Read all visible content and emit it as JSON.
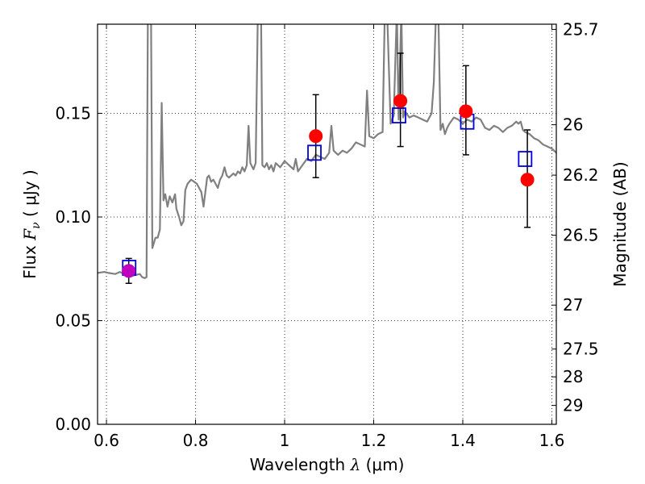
{
  "chart_data": {
    "type": "scatter",
    "title": "",
    "xlabel": {
      "prefix": "Wavelength  ",
      "symbol": "λ",
      "unit": " (μm)"
    },
    "ylabel": {
      "prefix": "Flux  ",
      "symbol": "F",
      "subscript": "ν",
      "unit": "  ( μJy )"
    },
    "y2label": "Magnitude (AB)",
    "xlim": [
      0.58,
      1.61
    ],
    "ylim": [
      0.0,
      0.193
    ],
    "grid": true,
    "x_ticks": [
      {
        "value": 0.6,
        "label": "0.6"
      },
      {
        "value": 0.8,
        "label": "0.8"
      },
      {
        "value": 1.0,
        "label": "1"
      },
      {
        "value": 1.2,
        "label": "1.2"
      },
      {
        "value": 1.4,
        "label": "1.4"
      },
      {
        "value": 1.6,
        "label": "1.6"
      }
    ],
    "y_ticks": [
      {
        "value": 0.0,
        "label": "0.00"
      },
      {
        "value": 0.05,
        "label": "0.05"
      },
      {
        "value": 0.1,
        "label": "0.10"
      },
      {
        "value": 0.15,
        "label": "0.15"
      }
    ],
    "y2_ticks": [
      {
        "flux": 0.1905,
        "label": "25.7"
      },
      {
        "flux": 0.1445,
        "label": "26"
      },
      {
        "flux": 0.1202,
        "label": "26.2"
      },
      {
        "flux": 0.0912,
        "label": "26.5"
      },
      {
        "flux": 0.0575,
        "label": "27"
      },
      {
        "flux": 0.0363,
        "label": "27.5"
      },
      {
        "flux": 0.0229,
        "label": "28"
      },
      {
        "flux": 0.0091,
        "label": "29"
      }
    ],
    "series": [
      {
        "kind": "line",
        "color": "#808080",
        "points": [
          [
            0.58,
            0.073
          ],
          [
            0.595,
            0.0735
          ],
          [
            0.605,
            0.073
          ],
          [
            0.62,
            0.0725
          ],
          [
            0.63,
            0.0735
          ],
          [
            0.645,
            0.072
          ],
          [
            0.655,
            0.0715
          ],
          [
            0.665,
            0.072
          ],
          [
            0.675,
            0.0725
          ],
          [
            0.68,
            0.071
          ],
          [
            0.686,
            0.0705
          ],
          [
            0.69,
            0.071
          ],
          [
            0.693,
            0.2
          ],
          [
            0.7,
            0.2
          ],
          [
            0.703,
            0.085
          ],
          [
            0.71,
            0.09
          ],
          [
            0.715,
            0.09
          ],
          [
            0.72,
            0.094
          ],
          [
            0.724,
            0.155
          ],
          [
            0.728,
            0.108
          ],
          [
            0.732,
            0.111
          ],
          [
            0.737,
            0.105
          ],
          [
            0.742,
            0.11
          ],
          [
            0.748,
            0.107
          ],
          [
            0.754,
            0.111
          ],
          [
            0.757,
            0.104
          ],
          [
            0.763,
            0.1
          ],
          [
            0.768,
            0.096
          ],
          [
            0.773,
            0.098
          ],
          [
            0.777,
            0.113
          ],
          [
            0.782,
            0.116
          ],
          [
            0.79,
            0.118
          ],
          [
            0.797,
            0.117
          ],
          [
            0.803,
            0.116
          ],
          [
            0.808,
            0.114
          ],
          [
            0.813,
            0.112
          ],
          [
            0.818,
            0.105
          ],
          [
            0.822,
            0.112
          ],
          [
            0.826,
            0.119
          ],
          [
            0.83,
            0.12
          ],
          [
            0.835,
            0.117
          ],
          [
            0.84,
            0.118
          ],
          [
            0.845,
            0.116
          ],
          [
            0.85,
            0.114
          ],
          [
            0.855,
            0.118
          ],
          [
            0.86,
            0.12
          ],
          [
            0.865,
            0.124
          ],
          [
            0.87,
            0.12
          ],
          [
            0.875,
            0.119
          ],
          [
            0.88,
            0.12
          ],
          [
            0.885,
            0.121
          ],
          [
            0.89,
            0.12
          ],
          [
            0.895,
            0.122
          ],
          [
            0.9,
            0.121
          ],
          [
            0.905,
            0.124
          ],
          [
            0.91,
            0.122
          ],
          [
            0.915,
            0.125
          ],
          [
            0.919,
            0.144
          ],
          [
            0.923,
            0.126
          ],
          [
            0.93,
            0.123
          ],
          [
            0.935,
            0.126
          ],
          [
            0.94,
            0.2
          ],
          [
            0.947,
            0.2
          ],
          [
            0.95,
            0.125
          ],
          [
            0.955,
            0.124
          ],
          [
            0.96,
            0.126
          ],
          [
            0.965,
            0.123
          ],
          [
            0.97,
            0.125
          ],
          [
            0.975,
            0.122
          ],
          [
            0.98,
            0.126
          ],
          [
            0.99,
            0.124
          ],
          [
            1.0,
            0.127
          ],
          [
            1.01,
            0.125
          ],
          [
            1.02,
            0.123
          ],
          [
            1.025,
            0.128
          ],
          [
            1.03,
            0.122
          ],
          [
            1.04,
            0.125
          ],
          [
            1.05,
            0.128
          ],
          [
            1.06,
            0.127
          ],
          [
            1.07,
            0.13
          ],
          [
            1.08,
            0.129
          ],
          [
            1.09,
            0.128
          ],
          [
            1.1,
            0.131
          ],
          [
            1.105,
            0.144
          ],
          [
            1.11,
            0.132
          ],
          [
            1.12,
            0.13
          ],
          [
            1.13,
            0.132
          ],
          [
            1.14,
            0.131
          ],
          [
            1.15,
            0.133
          ],
          [
            1.16,
            0.136
          ],
          [
            1.17,
            0.135
          ],
          [
            1.18,
            0.134
          ],
          [
            1.185,
            0.161
          ],
          [
            1.19,
            0.139
          ],
          [
            1.2,
            0.138
          ],
          [
            1.21,
            0.14
          ],
          [
            1.22,
            0.141
          ],
          [
            1.225,
            0.2
          ],
          [
            1.23,
            0.2
          ],
          [
            1.238,
            0.145
          ],
          [
            1.245,
            0.149
          ],
          [
            1.252,
            0.2
          ],
          [
            1.256,
            0.147
          ],
          [
            1.262,
            0.2
          ],
          [
            1.266,
            0.148
          ],
          [
            1.27,
            0.151
          ],
          [
            1.28,
            0.148
          ],
          [
            1.29,
            0.149
          ],
          [
            1.3,
            0.148
          ],
          [
            1.31,
            0.147
          ],
          [
            1.32,
            0.146
          ],
          [
            1.33,
            0.15
          ],
          [
            1.335,
            0.165
          ],
          [
            1.34,
            0.2
          ],
          [
            1.345,
            0.2
          ],
          [
            1.35,
            0.142
          ],
          [
            1.355,
            0.145
          ],
          [
            1.36,
            0.14
          ],
          [
            1.365,
            0.143
          ],
          [
            1.37,
            0.145
          ],
          [
            1.38,
            0.148
          ],
          [
            1.39,
            0.147
          ],
          [
            1.4,
            0.145
          ],
          [
            1.41,
            0.147
          ],
          [
            1.42,
            0.146
          ],
          [
            1.43,
            0.148
          ],
          [
            1.44,
            0.147
          ],
          [
            1.45,
            0.143
          ],
          [
            1.46,
            0.142
          ],
          [
            1.47,
            0.144
          ],
          [
            1.48,
            0.143
          ],
          [
            1.49,
            0.141
          ],
          [
            1.5,
            0.143
          ],
          [
            1.51,
            0.144
          ],
          [
            1.52,
            0.146
          ],
          [
            1.525,
            0.145
          ],
          [
            1.53,
            0.146
          ],
          [
            1.535,
            0.142
          ],
          [
            1.54,
            0.141
          ],
          [
            1.55,
            0.14
          ],
          [
            1.56,
            0.138
          ],
          [
            1.57,
            0.137
          ],
          [
            1.58,
            0.135
          ],
          [
            1.59,
            0.134
          ],
          [
            1.6,
            0.133
          ],
          [
            1.61,
            0.131
          ]
        ]
      },
      {
        "kind": "errorbar",
        "color": "#000000",
        "points": [
          {
            "x": 0.65,
            "y": 0.074,
            "low": 0.068,
            "high": 0.08
          },
          {
            "x": 1.07,
            "y": 0.139,
            "low": 0.119,
            "high": 0.159
          },
          {
            "x": 1.26,
            "y": 0.156,
            "low": 0.134,
            "high": 0.179
          },
          {
            "x": 1.407,
            "y": 0.151,
            "low": 0.13,
            "high": 0.173
          },
          {
            "x": 1.545,
            "y": 0.118,
            "low": 0.095,
            "high": 0.142
          }
        ]
      },
      {
        "kind": "open-square",
        "color": "#0000dd",
        "points": [
          [
            0.651,
            0.0755
          ],
          [
            1.067,
            0.131
          ],
          [
            1.257,
            0.149
          ],
          [
            1.41,
            0.146
          ],
          [
            1.54,
            0.128
          ]
        ]
      },
      {
        "kind": "filled-circle",
        "color": "#ff0000",
        "points": [
          [
            1.07,
            0.139
          ],
          [
            1.26,
            0.156
          ],
          [
            1.407,
            0.151
          ],
          [
            1.545,
            0.118
          ]
        ]
      },
      {
        "kind": "filled-circle",
        "color": "#bf00bf",
        "points": [
          [
            0.65,
            0.074
          ]
        ]
      }
    ]
  }
}
